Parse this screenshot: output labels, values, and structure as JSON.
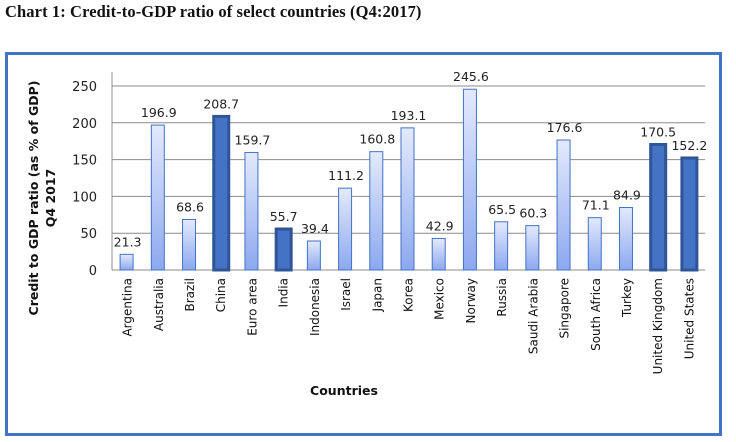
{
  "figure": {
    "caption": "Chart 1: Credit-to-GDP ratio of select countries (Q4:2017)"
  },
  "colors": {
    "frame": "#4472c4",
    "bar_light_top": "#e4eafc",
    "bar_light_bottom": "#8ca8ef",
    "bar_light_border": "#4472c4",
    "bar_dark_fill": "#4472c4",
    "bar_dark_border": "#2f5597",
    "grid": "#8c8c8c"
  },
  "chart_data": {
    "type": "bar",
    "title": "",
    "xlabel": "Countries",
    "ylabel": "Credit to GDP ratio (as % of GDP)",
    "ylabel_line2": "Q4 2017",
    "ylim": [
      0,
      250
    ],
    "yticks": [
      0,
      50,
      100,
      150,
      200,
      250
    ],
    "grid": true,
    "legend": "none",
    "categories": [
      "Argentina",
      "Australia",
      "Brazil",
      "China",
      "Euro area",
      "India",
      "Indonesia",
      "Israel",
      "Japan",
      "Korea",
      "Mexico",
      "Norway",
      "Russia",
      "Saudi Arabia",
      "Singapore",
      "South Africa",
      "Turkey",
      "United Kingdom",
      "United States"
    ],
    "values": [
      21.3,
      196.9,
      68.6,
      208.7,
      159.7,
      55.7,
      39.4,
      111.2,
      160.8,
      193.1,
      42.9,
      245.6,
      65.5,
      60.3,
      176.6,
      71.1,
      84.9,
      170.5,
      152.2
    ],
    "data_labels": [
      "21.3",
      "196.9",
      "68.6",
      "208.7",
      "159.7",
      "55.7",
      "39.4",
      "111.2",
      "160.8",
      "193.1",
      "42.9",
      "245.6",
      "65.5",
      "60.3",
      "176.6",
      "71.1",
      "84.9",
      "170.5",
      "152.2"
    ],
    "highlighted": [
      "China",
      "India",
      "United Kingdom",
      "United States"
    ]
  }
}
